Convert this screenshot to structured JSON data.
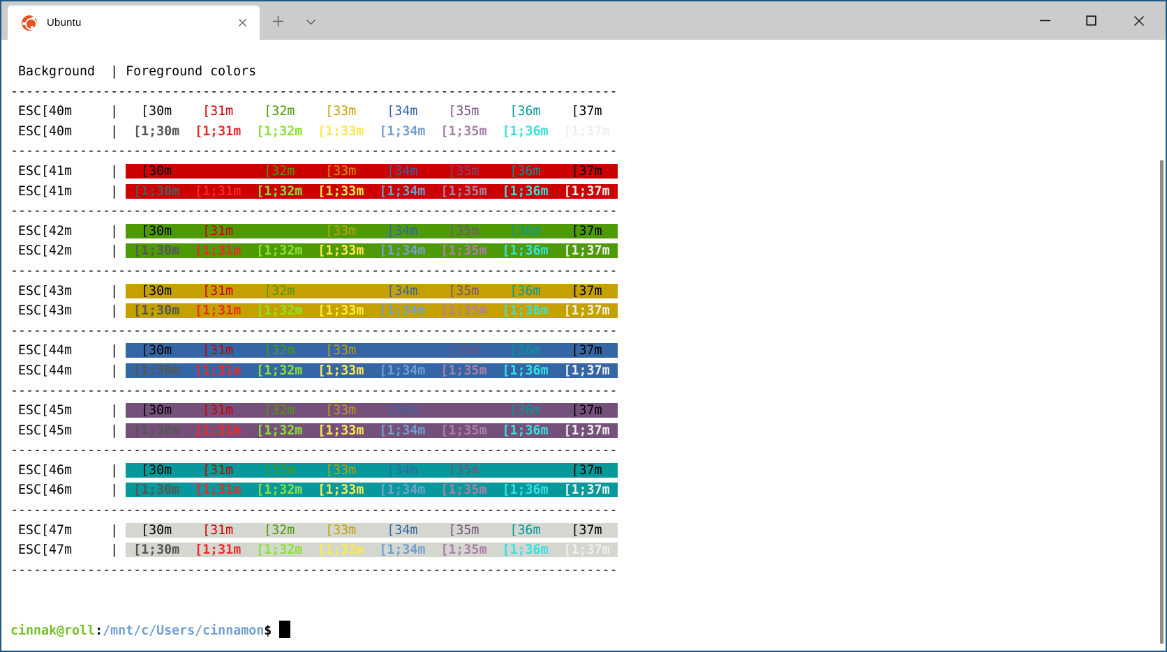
{
  "window": {
    "tab_title": "Ubuntu",
    "icons": {
      "tab_logo": "ubuntu-circle-of-friends",
      "tab_close": "close-x",
      "new_tab": "plus",
      "tab_dropdown": "chevron-down",
      "minimize": "minimize-line",
      "maximize": "maximize-square",
      "close": "close-x"
    },
    "colors": {
      "titlebar_bg": "#cccccc",
      "tab_bg": "#ffffff",
      "window_border": "#1d5a85",
      "ubuntu_orange": "#e95420"
    }
  },
  "terminal": {
    "header": {
      "background_label": "Background",
      "separator": "|",
      "foreground_label": "Foreground colors"
    },
    "separator": {
      "dash": "-",
      "count": 79
    },
    "columns_normal": [
      "[30m",
      "[31m",
      "[32m",
      "[33m",
      "[34m",
      "[35m",
      "[36m",
      "[37m"
    ],
    "columns_bright": [
      "[1;30m",
      "[1;31m",
      "[1;32m",
      "[1;33m",
      "[1;34m",
      "[1;35m",
      "[1;36m",
      "[1;37m"
    ],
    "fg_colors_normal": [
      "#000000",
      "#cc0000",
      "#4e9a06",
      "#c4a000",
      "#3465a4",
      "#75507b",
      "#06989a",
      "#000000"
    ],
    "fg_colors_bright": [
      "#555753",
      "#ef2929",
      "#8ae234",
      "#fce94f",
      "#729fcf",
      "#ad7fa8",
      "#34e2e2",
      "#eeeeec"
    ],
    "rows": [
      {
        "label": "ESC[40m",
        "bg": "#ffffff"
      },
      {
        "label": "ESC[41m",
        "bg": "#cc0000"
      },
      {
        "label": "ESC[42m",
        "bg": "#4e9a06"
      },
      {
        "label": "ESC[43m",
        "bg": "#c4a000"
      },
      {
        "label": "ESC[44m",
        "bg": "#3465a4"
      },
      {
        "label": "ESC[45m",
        "bg": "#75507b"
      },
      {
        "label": "ESC[46m",
        "bg": "#06989a"
      },
      {
        "label": "ESC[47m",
        "bg": "#d3d7cf"
      }
    ],
    "prompt": {
      "user_host": "cinnak@roll",
      "colon": ":",
      "path": "/mnt/c/Users/cinnamon",
      "symbol": "$",
      "user_host_color": "#76be2d",
      "path_color": "#729fcf",
      "cursor_color": "#000000"
    }
  }
}
